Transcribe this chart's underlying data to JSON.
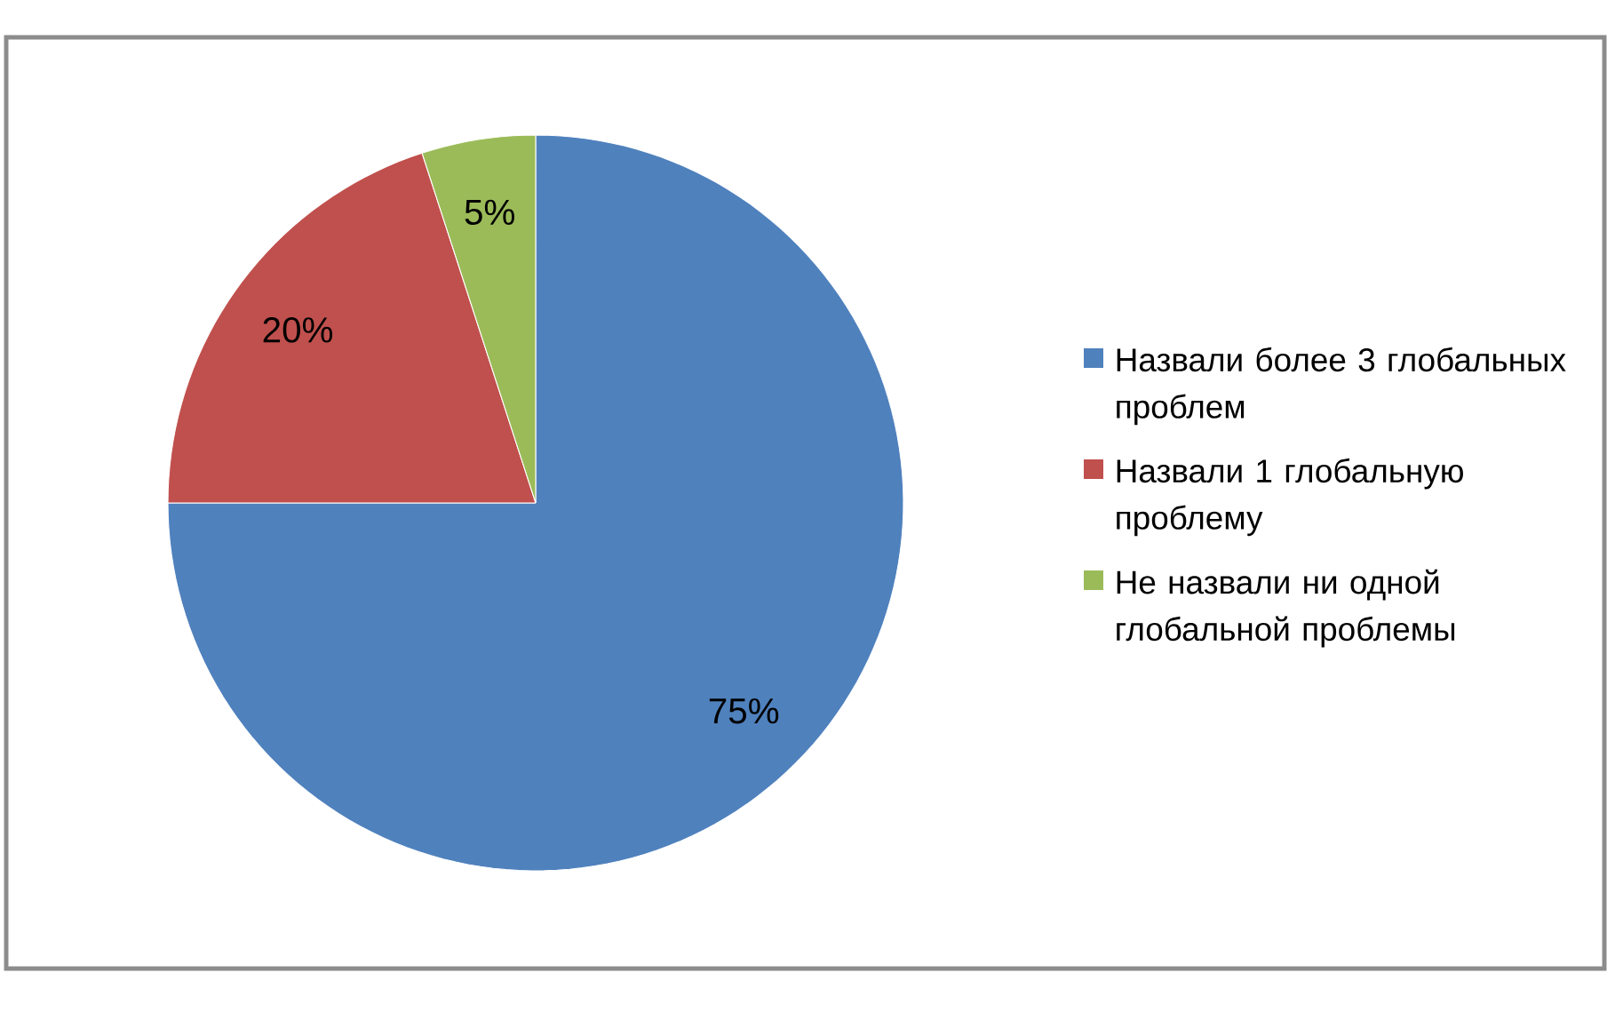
{
  "chart_data": {
    "type": "pie",
    "categories": [
      "Назвали более 3 глобальных проблем",
      "Назвали 1 глобальную проблему",
      "Не назвали ни одной глобальной проблемы"
    ],
    "values": [
      75,
      20,
      5
    ],
    "colors": [
      "#4f81bd",
      "#c0504d",
      "#9bbb59"
    ],
    "value_labels": [
      "75%",
      "20%",
      "5%"
    ],
    "legend": "right"
  }
}
